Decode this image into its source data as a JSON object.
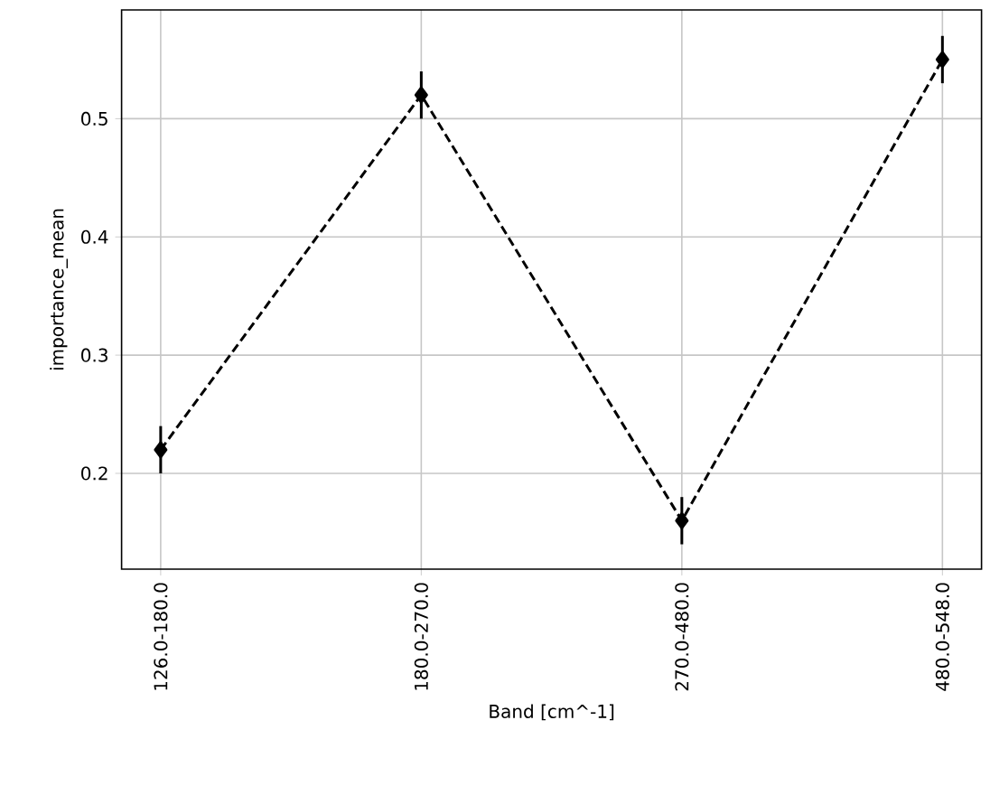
{
  "chart_data": {
    "type": "line",
    "xlabel": "Band [cm^-1]",
    "ylabel": "importance_mean",
    "categories": [
      "126.0-180.0",
      "180.0-270.0",
      "270.0-480.0",
      "480.0-548.0"
    ],
    "values": [
      0.22,
      0.52,
      0.16,
      0.55
    ],
    "errors": [
      0.02,
      0.02,
      0.02,
      0.02
    ],
    "color": "#000000",
    "marker": "diamond",
    "line_style": "dashed",
    "ylim": [
      0.119,
      0.592
    ],
    "yticks": [
      0.2,
      0.3,
      0.4,
      0.5
    ],
    "grid": true
  }
}
